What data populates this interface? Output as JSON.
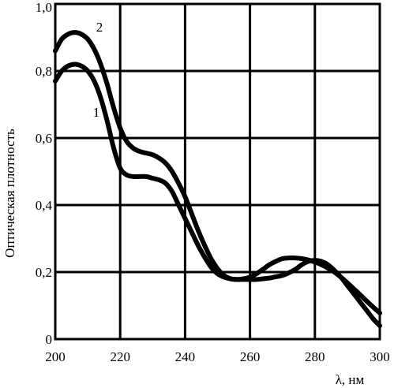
{
  "chart_data": {
    "type": "line",
    "title": "",
    "xlabel": "λ, нм",
    "ylabel": "Оптическая плотность",
    "xlim": [
      200,
      300
    ],
    "ylim": [
      0,
      1.0
    ],
    "grid": true,
    "x_ticks": [
      "200",
      "220",
      "240",
      "260",
      "280",
      "300"
    ],
    "y_ticks": [
      "0",
      "0,2",
      "0,4",
      "0,6",
      "0,8",
      "1,0"
    ],
    "series": [
      {
        "name": "1",
        "x": [
          200,
          202,
          204,
          206,
          208,
          210,
          212,
          214,
          216,
          218,
          220,
          222,
          224,
          226,
          228,
          230,
          232,
          234,
          236,
          238,
          240,
          242,
          244,
          246,
          248,
          250,
          252,
          254,
          256,
          258,
          260,
          262,
          264,
          266,
          268,
          270,
          272,
          274,
          276,
          278,
          280,
          282,
          284,
          286,
          288,
          290,
          292,
          294,
          296,
          298,
          300
        ],
        "y": [
          0.77,
          0.8,
          0.815,
          0.82,
          0.815,
          0.8,
          0.77,
          0.72,
          0.65,
          0.57,
          0.51,
          0.49,
          0.485,
          0.485,
          0.485,
          0.48,
          0.475,
          0.465,
          0.44,
          0.4,
          0.36,
          0.32,
          0.28,
          0.245,
          0.215,
          0.195,
          0.185,
          0.18,
          0.178,
          0.178,
          0.178,
          0.178,
          0.18,
          0.182,
          0.186,
          0.19,
          0.198,
          0.208,
          0.222,
          0.232,
          0.235,
          0.232,
          0.222,
          0.205,
          0.185,
          0.16,
          0.135,
          0.11,
          0.085,
          0.06,
          0.04
        ]
      },
      {
        "name": "2",
        "x": [
          200,
          202,
          204,
          206,
          208,
          210,
          212,
          214,
          216,
          218,
          220,
          222,
          224,
          226,
          228,
          230,
          232,
          234,
          236,
          238,
          240,
          242,
          244,
          246,
          248,
          250,
          252,
          254,
          256,
          258,
          260,
          262,
          264,
          266,
          268,
          270,
          272,
          274,
          276,
          278,
          280,
          282,
          284,
          286,
          288,
          290,
          292,
          294,
          296,
          298,
          300
        ],
        "y": [
          0.86,
          0.895,
          0.91,
          0.915,
          0.91,
          0.895,
          0.865,
          0.82,
          0.76,
          0.69,
          0.63,
          0.59,
          0.57,
          0.56,
          0.555,
          0.55,
          0.54,
          0.525,
          0.5,
          0.465,
          0.425,
          0.375,
          0.325,
          0.28,
          0.24,
          0.21,
          0.19,
          0.18,
          0.178,
          0.18,
          0.185,
          0.195,
          0.208,
          0.222,
          0.232,
          0.24,
          0.242,
          0.242,
          0.24,
          0.236,
          0.23,
          0.222,
          0.212,
          0.2,
          0.185,
          0.168,
          0.15,
          0.132,
          0.113,
          0.095,
          0.078
        ]
      }
    ]
  }
}
